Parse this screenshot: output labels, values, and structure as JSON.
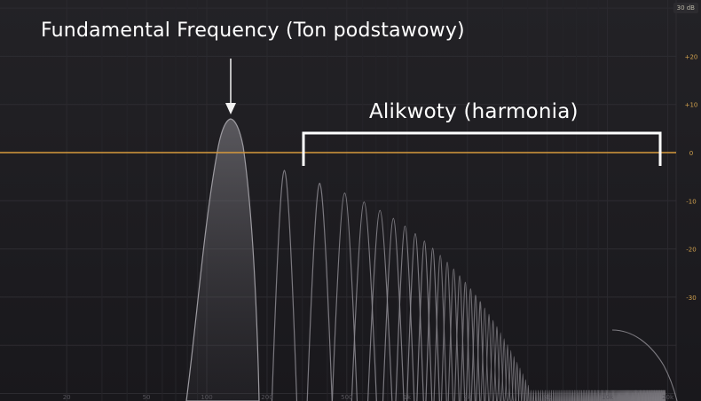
{
  "analyzer": {
    "range_label": "30 dB",
    "db_labels": [
      "+20",
      "+10",
      "0",
      "-10",
      "-20",
      "-30"
    ],
    "freq_labels": [
      "20",
      "50",
      "100",
      "200",
      "500",
      "1k",
      "2k",
      "5k",
      "10k",
      "20k"
    ],
    "zero_line_color": "#d79a3c",
    "db_label_color": "#d2a24e",
    "freq_label_color": "#55535a"
  },
  "annotations": {
    "fundamental": "Fundamental Frequency (Ton podstawowy)",
    "harmonics": "Alikwoty (harmonia)"
  }
}
